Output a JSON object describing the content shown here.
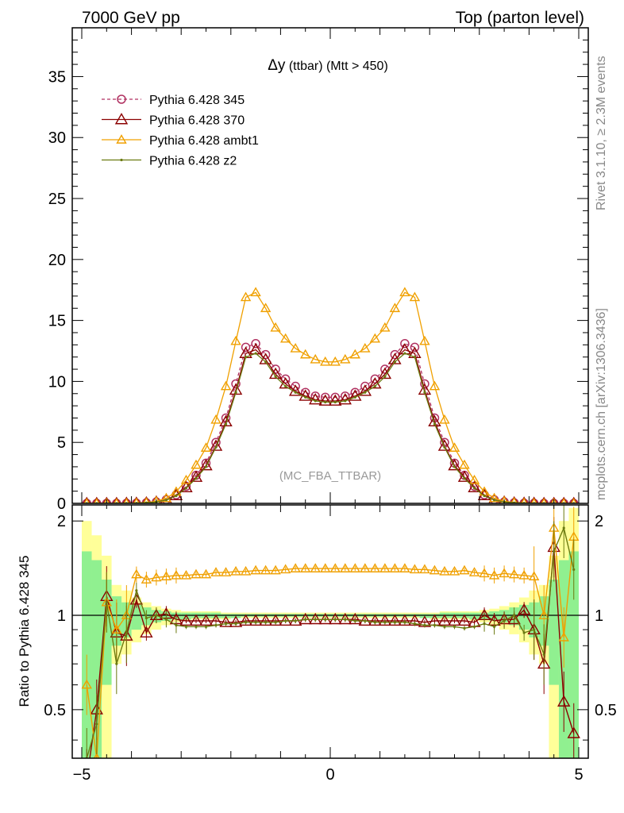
{
  "header": {
    "left": "7000 GeV pp",
    "right": "Top (parton level)"
  },
  "side": {
    "rivet": "Rivet 3.1.10, ≥ 2.3M events",
    "mcplots": "mcplots.cern.ch [arXiv:1306.3436]"
  },
  "plot_title": {
    "delta": "Δy",
    "rest": " (ttbar) (Mtt > 450)"
  },
  "watermark": "(MC_FBA_TTBAR)",
  "ratio_ylabel": "Ratio to Pythia 6.428 345",
  "colors": {
    "p345": "#b03060",
    "p370": "#8b0000",
    "ambt1": "#f0a000",
    "z2": "#6b7a10",
    "band_green": "#90f090",
    "band_yellow": "#ffff99"
  },
  "chart_data": [
    {
      "type": "line",
      "title": "Δy (ttbar) (Mtt > 450)",
      "xlim": [
        -5,
        5
      ],
      "ylim": [
        0,
        39
      ],
      "yticks": [
        0,
        5,
        10,
        15,
        20,
        25,
        30,
        35
      ],
      "ytick_labels": [
        "0",
        "5",
        "10",
        "15",
        "20",
        "25",
        "30",
        "35"
      ],
      "x": [
        -4.9,
        -4.7,
        -4.5,
        -4.3,
        -4.1,
        -3.9,
        -3.7,
        -3.5,
        -3.3,
        -3.1,
        -2.9,
        -2.7,
        -2.5,
        -2.3,
        -2.1,
        -1.9,
        -1.7,
        -1.5,
        -1.3,
        -1.1,
        -0.9,
        -0.7,
        -0.5,
        -0.3,
        -0.1,
        0.1,
        0.3,
        0.5,
        0.7,
        0.9,
        1.1,
        1.3,
        1.5,
        1.7,
        1.9,
        2.1,
        2.3,
        2.5,
        2.7,
        2.9,
        3.1,
        3.3,
        3.5,
        3.7,
        3.9,
        4.1,
        4.3,
        4.5,
        4.7,
        4.9
      ],
      "legend_position": "top-left",
      "series": [
        {
          "name": "Pythia 6.428 345",
          "style": "dashed-circle",
          "values": [
            0.0,
            0.0,
            0.0,
            0.0,
            0.01,
            0.02,
            0.05,
            0.12,
            0.3,
            0.7,
            1.4,
            2.3,
            3.3,
            5.0,
            7.0,
            9.8,
            12.8,
            13.1,
            12.2,
            11.0,
            10.2,
            9.6,
            9.1,
            8.8,
            8.7,
            8.7,
            8.8,
            9.1,
            9.6,
            10.2,
            11.0,
            12.2,
            13.1,
            12.8,
            9.8,
            7.0,
            5.0,
            3.3,
            2.3,
            1.4,
            0.7,
            0.3,
            0.12,
            0.05,
            0.02,
            0.01,
            0.0,
            0.0,
            0.0,
            0.0
          ]
        },
        {
          "name": "Pythia 6.428 370",
          "style": "solid-triangle",
          "values": [
            0.0,
            0.0,
            0.0,
            0.0,
            0.01,
            0.02,
            0.05,
            0.12,
            0.3,
            0.65,
            1.3,
            2.15,
            3.1,
            4.7,
            6.7,
            9.3,
            12.3,
            12.6,
            11.8,
            10.6,
            9.8,
            9.2,
            8.8,
            8.5,
            8.4,
            8.4,
            8.5,
            8.8,
            9.2,
            9.8,
            10.6,
            11.8,
            12.6,
            12.3,
            9.3,
            6.7,
            4.7,
            3.1,
            2.15,
            1.3,
            0.65,
            0.3,
            0.12,
            0.05,
            0.02,
            0.01,
            0.0,
            0.0,
            0.0,
            0.0
          ]
        },
        {
          "name": "Pythia 6.428 ambt1",
          "style": "solid-triangle",
          "values": [
            0.0,
            0.0,
            0.0,
            0.0,
            0.01,
            0.03,
            0.07,
            0.17,
            0.42,
            0.95,
            1.9,
            3.15,
            4.55,
            6.85,
            9.6,
            13.3,
            16.9,
            17.3,
            16.0,
            14.4,
            13.5,
            12.7,
            12.2,
            11.8,
            11.6,
            11.6,
            11.8,
            12.2,
            12.7,
            13.5,
            14.4,
            16.0,
            17.3,
            16.9,
            13.3,
            9.6,
            6.85,
            4.55,
            3.15,
            1.9,
            0.95,
            0.42,
            0.17,
            0.07,
            0.03,
            0.01,
            0.0,
            0.0,
            0.0,
            0.0
          ]
        },
        {
          "name": "Pythia 6.428 z2",
          "style": "solid-dot",
          "values": [
            0.0,
            0.0,
            0.0,
            0.0,
            0.01,
            0.02,
            0.05,
            0.11,
            0.28,
            0.62,
            1.25,
            2.05,
            3.0,
            4.6,
            6.5,
            9.1,
            12.0,
            12.3,
            11.6,
            10.4,
            9.6,
            9.1,
            8.7,
            8.4,
            8.3,
            8.3,
            8.4,
            8.7,
            9.1,
            9.6,
            10.4,
            11.6,
            12.3,
            12.0,
            9.1,
            6.5,
            4.6,
            3.0,
            2.05,
            1.25,
            0.62,
            0.28,
            0.11,
            0.05,
            0.02,
            0.01,
            0.0,
            0.0,
            0.0,
            0.0
          ]
        }
      ]
    },
    {
      "type": "line",
      "ylabel": "Ratio to Pythia 6.428 345",
      "xlim": [
        -5,
        5
      ],
      "ylim": [
        0.35,
        2.25
      ],
      "xticks": [
        -5,
        0,
        5
      ],
      "xtick_labels": [
        "−5",
        "0",
        "5"
      ],
      "yticks": [
        0.5,
        1,
        2
      ],
      "ytick_labels": [
        "0.5",
        "1",
        "2"
      ],
      "reference_line": 1,
      "x": [
        -4.9,
        -4.7,
        -4.5,
        -4.3,
        -4.1,
        -3.9,
        -3.7,
        -3.5,
        -3.3,
        -3.1,
        -2.9,
        -2.7,
        -2.5,
        -2.3,
        -2.1,
        -1.9,
        -1.7,
        -1.5,
        -1.3,
        -1.1,
        -0.9,
        -0.7,
        -0.5,
        -0.3,
        -0.1,
        0.1,
        0.3,
        0.5,
        0.7,
        0.9,
        1.1,
        1.3,
        1.5,
        1.7,
        1.9,
        2.1,
        2.3,
        2.5,
        2.7,
        2.9,
        3.1,
        3.3,
        3.5,
        3.7,
        3.9,
        4.1,
        4.3,
        4.5,
        4.7,
        4.9
      ],
      "band_green": {
        "lo": [
          0.3,
          0.3,
          0.6,
          0.8,
          0.85,
          0.9,
          0.93,
          0.95,
          0.96,
          0.97,
          0.97,
          0.98,
          0.98,
          0.98,
          0.98,
          0.98,
          0.99,
          0.99,
          0.99,
          0.99,
          0.99,
          0.99,
          0.99,
          0.99,
          0.99,
          0.99,
          0.99,
          0.99,
          0.99,
          0.99,
          0.99,
          0.99,
          0.99,
          0.99,
          0.98,
          0.98,
          0.98,
          0.98,
          0.98,
          0.97,
          0.97,
          0.96,
          0.95,
          0.93,
          0.9,
          0.85,
          0.8,
          0.6,
          0.3,
          0.3
        ],
        "hi": [
          1.6,
          1.5,
          1.3,
          1.15,
          1.1,
          1.08,
          1.06,
          1.04,
          1.03,
          1.02,
          1.02,
          1.02,
          1.02,
          1.02,
          1.01,
          1.01,
          1.01,
          1.01,
          1.01,
          1.01,
          1.01,
          1.01,
          1.01,
          1.01,
          1.01,
          1.01,
          1.01,
          1.01,
          1.01,
          1.01,
          1.01,
          1.01,
          1.01,
          1.01,
          1.01,
          1.01,
          1.02,
          1.02,
          1.02,
          1.02,
          1.02,
          1.03,
          1.04,
          1.06,
          1.08,
          1.1,
          1.15,
          1.3,
          1.5,
          1.6
        ]
      },
      "band_yellow": {
        "lo": [
          0.2,
          0.3,
          0.3,
          0.7,
          0.75,
          0.82,
          0.87,
          0.9,
          0.93,
          0.95,
          0.96,
          0.97,
          0.97,
          0.97,
          0.97,
          0.98,
          0.98,
          0.98,
          0.98,
          0.98,
          0.98,
          0.98,
          0.98,
          0.98,
          0.98,
          0.98,
          0.98,
          0.98,
          0.98,
          0.98,
          0.98,
          0.98,
          0.98,
          0.98,
          0.98,
          0.97,
          0.97,
          0.97,
          0.97,
          0.96,
          0.95,
          0.93,
          0.9,
          0.87,
          0.82,
          0.75,
          0.7,
          0.3,
          0.3,
          0.2
        ],
        "hi": [
          2.0,
          1.8,
          1.55,
          1.25,
          1.2,
          1.14,
          1.1,
          1.07,
          1.05,
          1.04,
          1.03,
          1.03,
          1.03,
          1.03,
          1.02,
          1.02,
          1.02,
          1.02,
          1.02,
          1.02,
          1.02,
          1.02,
          1.02,
          1.02,
          1.02,
          1.02,
          1.02,
          1.02,
          1.02,
          1.02,
          1.02,
          1.02,
          1.02,
          1.02,
          1.02,
          1.02,
          1.03,
          1.03,
          1.03,
          1.03,
          1.04,
          1.05,
          1.07,
          1.1,
          1.14,
          1.2,
          1.25,
          1.55,
          2.0,
          2.2
        ]
      },
      "series": [
        {
          "name": "Pythia 6.428 370",
          "style": "solid-triangle",
          "values": [
            0.3,
            0.5,
            1.15,
            0.88,
            0.86,
            1.12,
            0.88,
            1.0,
            1.01,
            0.97,
            0.96,
            0.96,
            0.96,
            0.96,
            0.95,
            0.95,
            0.96,
            0.96,
            0.96,
            0.96,
            0.96,
            0.96,
            0.97,
            0.97,
            0.97,
            0.97,
            0.97,
            0.97,
            0.96,
            0.96,
            0.96,
            0.96,
            0.96,
            0.96,
            0.95,
            0.96,
            0.96,
            0.96,
            0.96,
            0.95,
            1.0,
            0.96,
            0.97,
            0.97,
            1.04,
            0.9,
            0.7,
            1.65,
            0.53,
            0.42
          ]
        },
        {
          "name": "Pythia 6.428 ambt1",
          "style": "solid-triangle",
          "values": [
            0.6,
            0.35,
            1.1,
            0.9,
            1.0,
            1.35,
            1.3,
            1.32,
            1.33,
            1.34,
            1.34,
            1.35,
            1.35,
            1.37,
            1.37,
            1.38,
            1.38,
            1.39,
            1.39,
            1.39,
            1.4,
            1.41,
            1.41,
            1.41,
            1.41,
            1.41,
            1.41,
            1.41,
            1.41,
            1.41,
            1.41,
            1.41,
            1.41,
            1.4,
            1.4,
            1.39,
            1.38,
            1.38,
            1.39,
            1.37,
            1.36,
            1.34,
            1.36,
            1.35,
            1.34,
            1.33,
            1.0,
            1.9,
            0.85,
            1.78
          ]
        },
        {
          "name": "Pythia 6.428 z2",
          "style": "solid-dot",
          "values": [
            0.35,
            0.45,
            1.1,
            0.7,
            0.88,
            1.2,
            0.98,
            1.0,
            0.97,
            0.93,
            0.92,
            0.92,
            0.92,
            0.93,
            0.94,
            0.94,
            0.95,
            0.95,
            0.95,
            0.95,
            0.96,
            0.96,
            0.97,
            0.97,
            0.97,
            0.97,
            0.97,
            0.96,
            0.96,
            0.95,
            0.95,
            0.95,
            0.95,
            0.94,
            0.93,
            0.93,
            0.92,
            0.92,
            0.91,
            0.92,
            0.94,
            0.92,
            0.96,
            1.0,
            0.88,
            0.9,
            0.75,
            1.6,
            1.9,
            1.4
          ]
        }
      ]
    }
  ]
}
